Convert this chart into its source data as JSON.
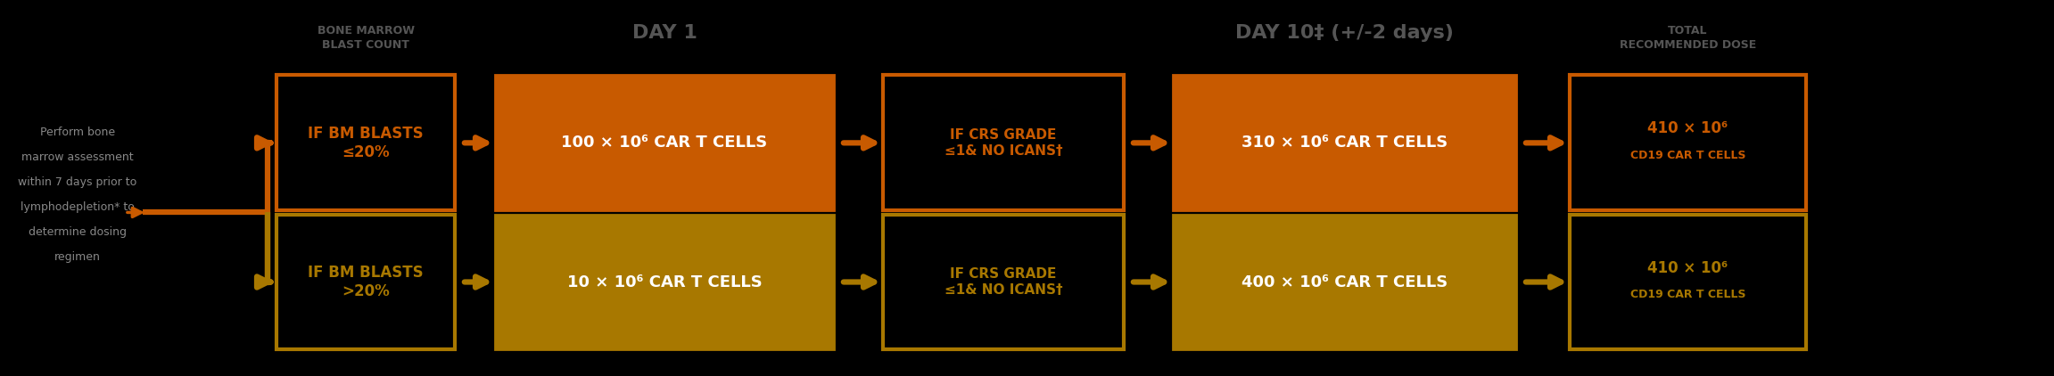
{
  "bg_color": "#000000",
  "orange": "#C85A00",
  "gold": "#A87800",
  "white": "#FFFFFF",
  "header_gray": "#555555",
  "text_gray": "#888888",
  "left_text_lines": [
    "Perform bone",
    "marrow assessment",
    "within 7 days prior to",
    "lymphodepletion* to",
    "determine dosing",
    "regimen"
  ],
  "header1": "BONE MARROW\nBLAST COUNT",
  "header2": "DAY 1",
  "header3": "DAY 10‡ (+/-2 days)",
  "header4": "TOTAL\nRECOMMENDED DOSE",
  "row1_box1": "IF BM BLASTS\n≤20%",
  "row1_box2": "100 × 10⁶ CAR T CELLS",
  "row1_box3": "IF CRS GRADE\n≤1& NO ICANS†",
  "row1_box4": "310 × 10⁶ CAR T CELLS",
  "row1_box5a": "410 × 10⁶",
  "row1_box5b": "CD19 CAR T CELLS",
  "row2_box1": "IF BM BLASTS\n>20%",
  "row2_box2": "10 × 10⁶ CAR T CELLS",
  "row2_box3": "IF CRS GRADE\n≤1& NO ICANS†",
  "row2_box4": "400 × 10⁶ CAR T CELLS",
  "row2_box5a": "410 × 10⁶",
  "row2_box5b": "CD19 CAR T CELLS",
  "fig_w": 23.03,
  "fig_h": 4.22,
  "dpi": 100
}
